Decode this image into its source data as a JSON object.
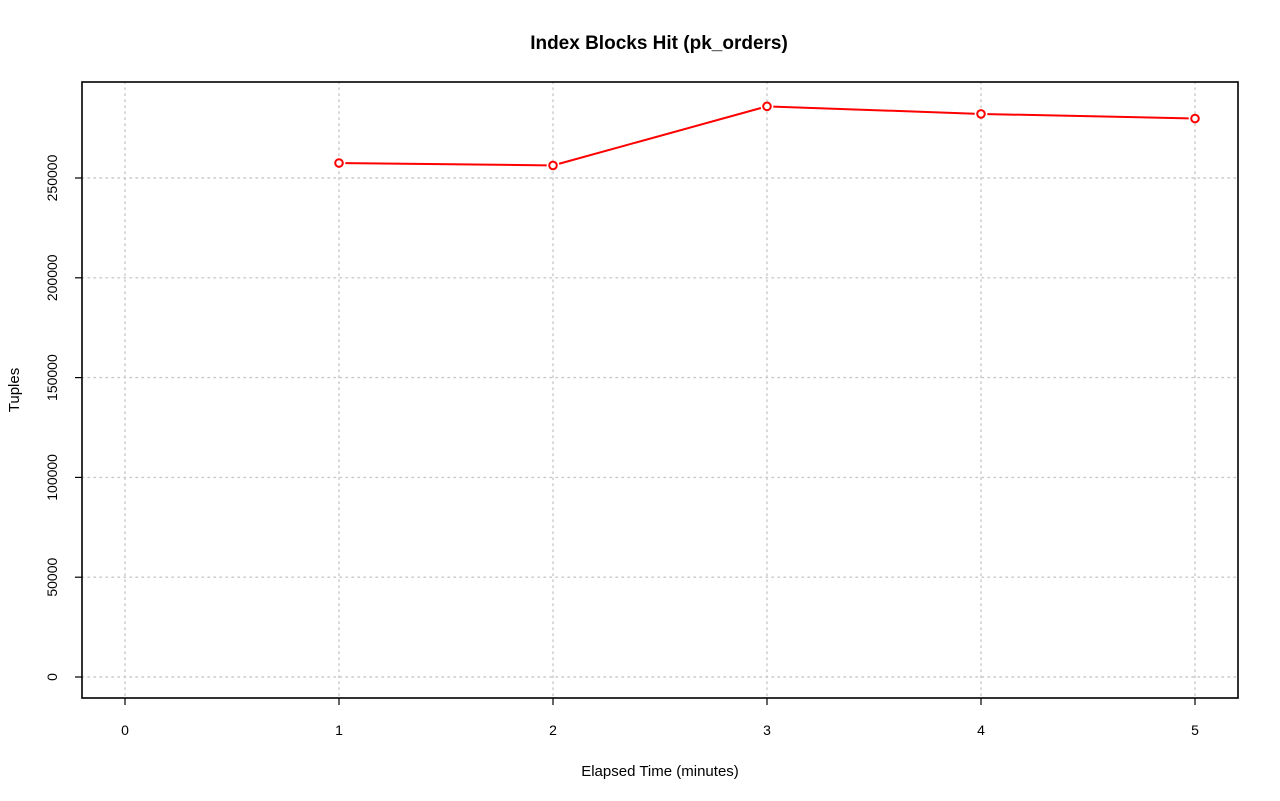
{
  "chart_data": {
    "type": "line",
    "title": "Index Blocks Hit (pk_orders)",
    "xlabel": "Elapsed Time (minutes)",
    "ylabel": "Tuples",
    "xlim": [
      0,
      5
    ],
    "ylim": [
      0,
      290000
    ],
    "x_ticks": [
      0,
      1,
      2,
      3,
      4,
      5
    ],
    "y_ticks": [
      0,
      50000,
      100000,
      150000,
      200000,
      250000
    ],
    "grid": true,
    "series": [
      {
        "color": "#ff0000",
        "marker": "open-circle",
        "x": [
          1,
          2,
          3,
          4,
          5
        ],
        "values": [
          257500,
          256300,
          285900,
          282100,
          279800
        ]
      }
    ]
  }
}
